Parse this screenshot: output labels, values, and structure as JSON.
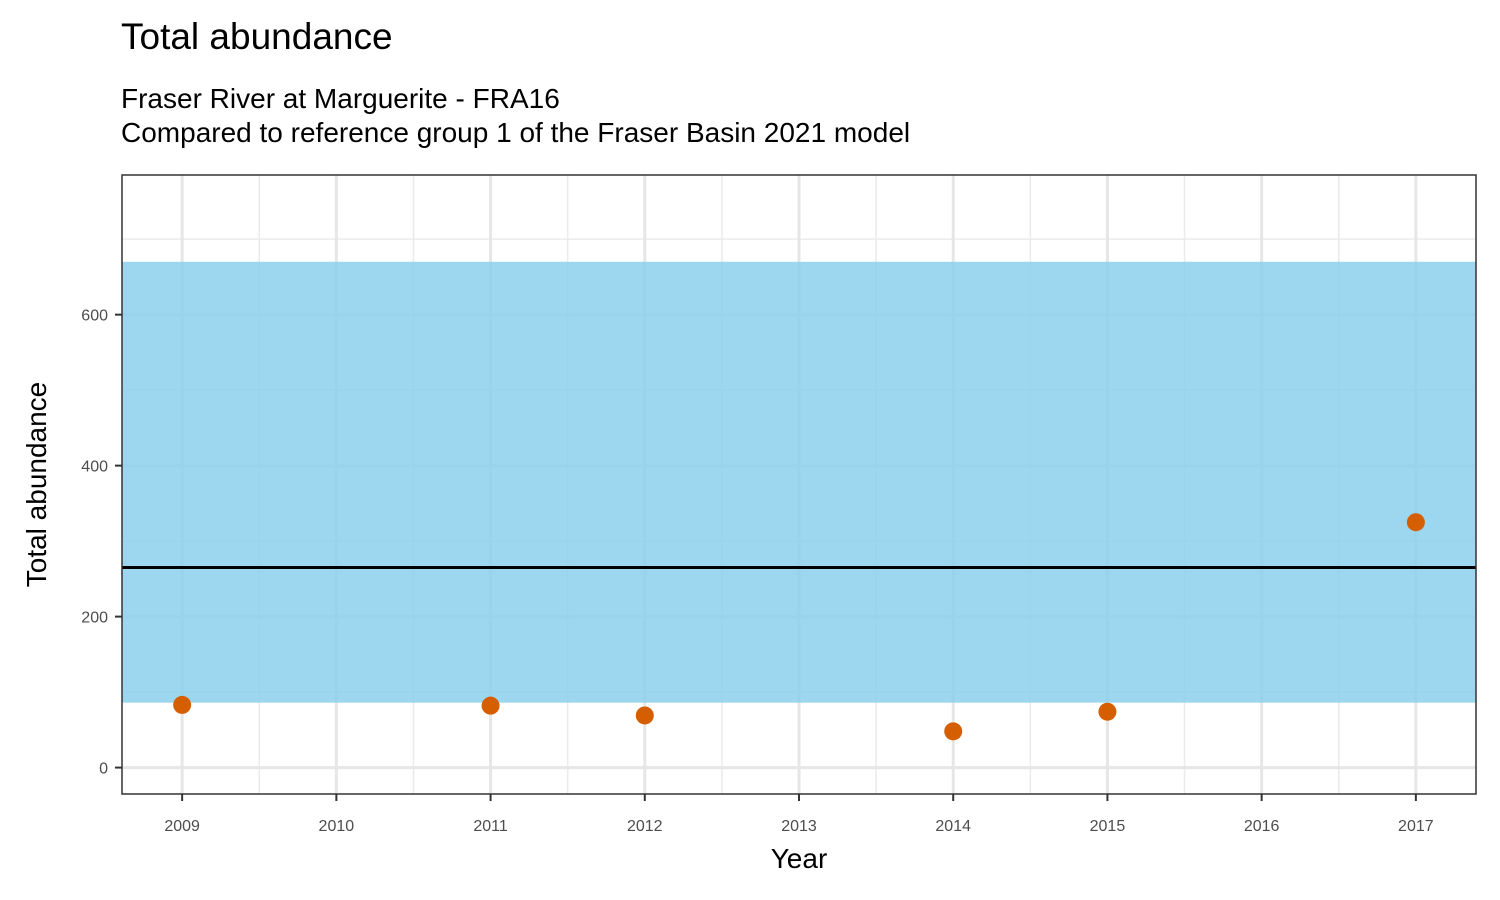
{
  "chart_data": {
    "type": "scatter",
    "title": "Total abundance",
    "subtitle_lines": [
      "Fraser River at Marguerite - FRA16",
      "Compared to reference group 1 of the Fraser Basin 2021 model"
    ],
    "xlabel": "Year",
    "ylabel": "Total abundance",
    "x_ticks": [
      2009,
      2010,
      2011,
      2012,
      2013,
      2014,
      2015,
      2016,
      2017
    ],
    "y_ticks": [
      0,
      200,
      400,
      600
    ],
    "xlim": [
      2008.61,
      2017.39
    ],
    "ylim": [
      -35,
      785
    ],
    "grid": true,
    "reference_band": {
      "lower": 86,
      "upper": 670,
      "color": "#87CEEB"
    },
    "reference_line": {
      "value": 265,
      "color": "#000000"
    },
    "series": [
      {
        "color": "#D55E00",
        "x": [
          2009,
          2011,
          2012,
          2014,
          2015,
          2017
        ],
        "y": [
          83,
          82,
          69,
          48,
          74,
          325
        ]
      }
    ]
  }
}
